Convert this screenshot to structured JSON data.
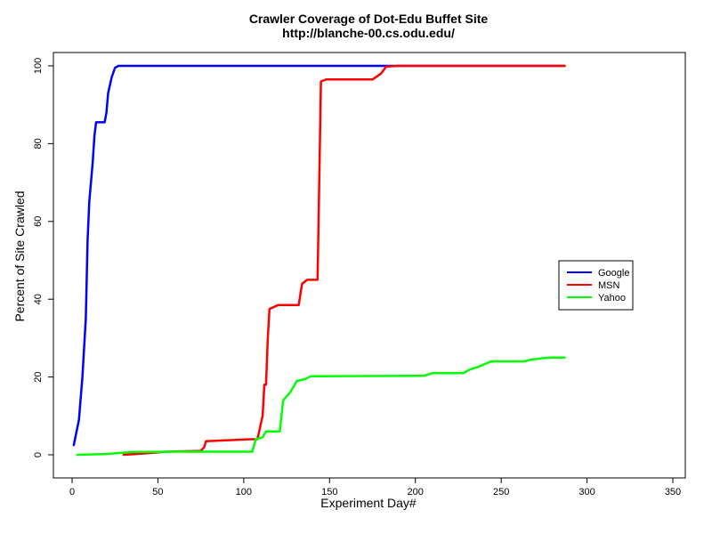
{
  "chart_data": {
    "type": "line",
    "title": "Crawler Coverage of Dot-Edu Buffet Site",
    "subtitle": "http://blanche-00.cs.odu.edu/",
    "xlabel": "Experiment Day#",
    "ylabel": "Percent of Site Crawled",
    "xlim": [
      0,
      350
    ],
    "ylim": [
      0,
      100
    ],
    "x_ticks": [
      0,
      50,
      100,
      150,
      200,
      250,
      300,
      350
    ],
    "y_ticks": [
      0,
      20,
      40,
      60,
      80,
      100
    ],
    "grid": false,
    "legend_position": "right",
    "series": [
      {
        "name": "Google",
        "color": "#0000ff",
        "points": [
          [
            1,
            2.5
          ],
          [
            4,
            9
          ],
          [
            6,
            20
          ],
          [
            8,
            35
          ],
          [
            9,
            55
          ],
          [
            10,
            65
          ],
          [
            12,
            75
          ],
          [
            13,
            82
          ],
          [
            14,
            85.5
          ],
          [
            19,
            85.5
          ],
          [
            20,
            88
          ],
          [
            21,
            93
          ],
          [
            23,
            97
          ],
          [
            25,
            99.5
          ],
          [
            27,
            100
          ],
          [
            287,
            100
          ]
        ]
      },
      {
        "name": "MSN",
        "color": "#ff0000",
        "points": [
          [
            30,
            0
          ],
          [
            40,
            0.3
          ],
          [
            55,
            0.8
          ],
          [
            75,
            1
          ],
          [
            77,
            2
          ],
          [
            78,
            3.5
          ],
          [
            104,
            4
          ],
          [
            108,
            4
          ],
          [
            110,
            8
          ],
          [
            111,
            10
          ],
          [
            112,
            18
          ],
          [
            113,
            18
          ],
          [
            114,
            30
          ],
          [
            115,
            37.5
          ],
          [
            120,
            38.5
          ],
          [
            132,
            38.5
          ],
          [
            134,
            44
          ],
          [
            137,
            45
          ],
          [
            143,
            45
          ],
          [
            144,
            70
          ],
          [
            145,
            96
          ],
          [
            148,
            96.5
          ],
          [
            175,
            96.5
          ],
          [
            180,
            98
          ],
          [
            183,
            99.8
          ],
          [
            190,
            100
          ],
          [
            287,
            100
          ]
        ]
      },
      {
        "name": "Yahoo",
        "color": "#00ff00",
        "points": [
          [
            3,
            0
          ],
          [
            20,
            0.2
          ],
          [
            35,
            0.7
          ],
          [
            60,
            0.8
          ],
          [
            105,
            0.8
          ],
          [
            107,
            4
          ],
          [
            111,
            4.5
          ],
          [
            113,
            6
          ],
          [
            121,
            6
          ],
          [
            123,
            14
          ],
          [
            127,
            16
          ],
          [
            131,
            19
          ],
          [
            136,
            19.5
          ],
          [
            139,
            20.2
          ],
          [
            205,
            20.3
          ],
          [
            210,
            21
          ],
          [
            228,
            21
          ],
          [
            232,
            22
          ],
          [
            236,
            22.5
          ],
          [
            244,
            24
          ],
          [
            263,
            24
          ],
          [
            268,
            24.5
          ],
          [
            278,
            25
          ],
          [
            287,
            25
          ]
        ]
      }
    ]
  }
}
